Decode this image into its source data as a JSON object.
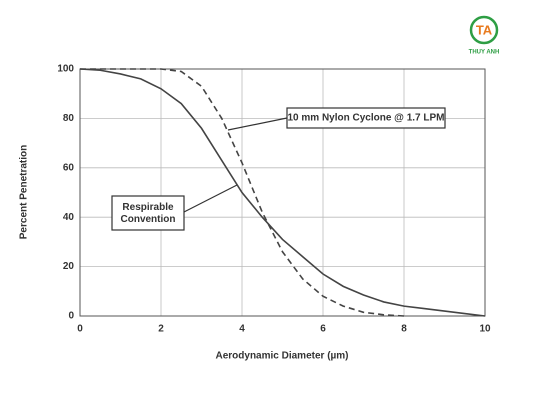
{
  "logo": {
    "mark": "TA",
    "name": "THUY ANH"
  },
  "chart_data": {
    "type": "line",
    "x_label": "Aerodynamic Diameter (µm)",
    "y_label": "Percent Penetration",
    "x": [
      0,
      0.5,
      1,
      1.5,
      2,
      2.5,
      3,
      3.5,
      4,
      4.5,
      5,
      5.5,
      6,
      6.5,
      7,
      7.5,
      8,
      8.5,
      9,
      9.5,
      10
    ],
    "series": [
      {
        "name": "Respirable Convention",
        "color": "#444444",
        "style": "solid",
        "values": [
          100,
          99.5,
          98,
          96,
          92,
          86,
          76,
          63,
          50,
          40,
          31,
          24,
          17,
          12,
          8.5,
          5.7,
          4,
          3,
          2,
          1,
          0
        ]
      },
      {
        "name": "10 mm Nylon Cyclone @ 1.7 LPM",
        "color": "#444444",
        "style": "dashed",
        "values": [
          100,
          100,
          100,
          100,
          100,
          99,
          93,
          80,
          62,
          42,
          26,
          15,
          8,
          4,
          1.5,
          0.5,
          0,
          null,
          null,
          null,
          null
        ]
      }
    ],
    "xlim": [
      0,
      10
    ],
    "xticks": [
      0,
      2,
      4,
      6,
      8,
      10
    ],
    "ylim": [
      0,
      100
    ],
    "yticks": [
      0,
      20,
      40,
      60,
      80,
      100
    ],
    "grid": true
  }
}
